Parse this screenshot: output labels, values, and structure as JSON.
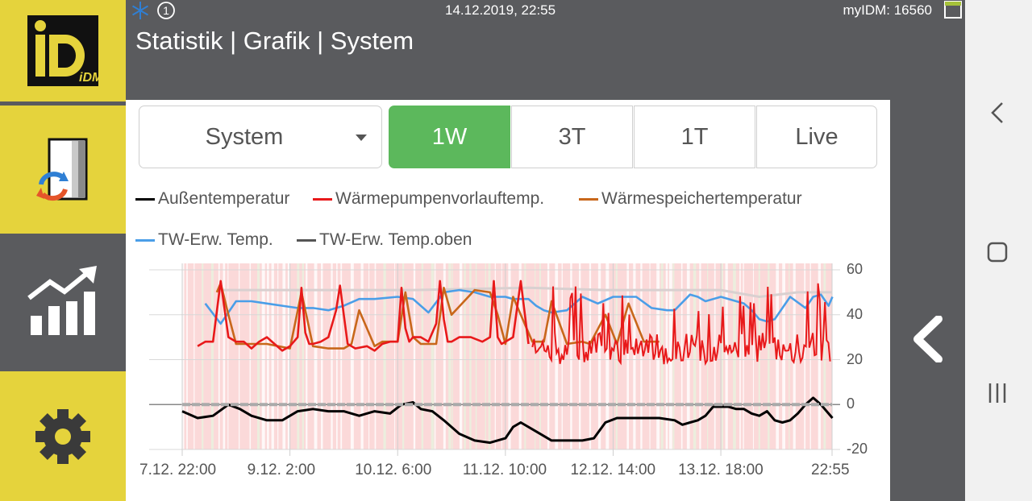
{
  "header": {
    "datetime": "14.12.2019, 22:55",
    "device_label": "myIDM: 16560",
    "title": "Statistik | Grafik | System",
    "status_icons": [
      "snowflake-icon",
      "circle-number-icon",
      "window-icon"
    ],
    "status_number": "1"
  },
  "sidebar": {
    "items": [
      {
        "name": "logo",
        "icon": "idm-logo",
        "logo_text": "iDM"
      },
      {
        "name": "system",
        "icon": "heatpump-icon"
      },
      {
        "name": "statistics",
        "icon": "chart-up-icon"
      },
      {
        "name": "settings",
        "icon": "gear-icon"
      }
    ]
  },
  "controls": {
    "selector": {
      "value": "System"
    },
    "ranges": [
      "1W",
      "3T",
      "1T",
      "Live"
    ],
    "active_range": "1W"
  },
  "colors": {
    "accent_yellow": "#e5d33c",
    "panel_gray": "#5a5b5e",
    "active_green": "#5cb85c"
  },
  "chart_data": {
    "type": "line",
    "legend": [
      {
        "name": "Außentemperatur",
        "color": "#000000"
      },
      {
        "name": "Wärmepumpenvorlauftemp.",
        "color": "#e8191a"
      },
      {
        "name": "Wärmespeichertemperatur",
        "color": "#c8671a"
      },
      {
        "name": "TW-Erw. Temp.",
        "color": "#4a9ee8"
      },
      {
        "name": "TW-Erw. Temp.oben",
        "color": "#555555"
      }
    ],
    "x_range": [
      "7.12. 22:00",
      "14.12. 22:55"
    ],
    "x_ticks": [
      "7.12. 22:00",
      "9.12. 2:00",
      "10.12. 6:00",
      "11.12. 10:00",
      "12.12. 14:00",
      "13.12. 18:00",
      "22:55"
    ],
    "x_tick_hours": [
      0,
      28,
      56,
      84,
      112,
      140,
      168.9
    ],
    "y_range": [
      -20,
      60
    ],
    "y_ticks": [
      "60",
      "40",
      "20",
      "0",
      "-20"
    ],
    "y_tick_values": [
      60,
      40,
      20,
      0,
      -20
    ],
    "grid": true,
    "series": [
      {
        "name": "Außentemperatur",
        "x": [
          0,
          4,
          8,
          12,
          15,
          18,
          22,
          26,
          30,
          34,
          38,
          42,
          46,
          50,
          54,
          57,
          60,
          62,
          65,
          68,
          72,
          76,
          80,
          84,
          86,
          88,
          92,
          96,
          100,
          104,
          107,
          110,
          113,
          116,
          120,
          124,
          128,
          130,
          132,
          134,
          136,
          138,
          140,
          142,
          144,
          146,
          148,
          150,
          152,
          154,
          156,
          158,
          160,
          162,
          164,
          166,
          168,
          169
        ],
        "y": [
          -3,
          -6,
          -5,
          0,
          -2,
          -5,
          -7,
          -7,
          -3,
          -2,
          -3,
          -3,
          -5,
          -3,
          -4,
          0,
          1,
          -2,
          -3,
          -7,
          -13,
          -16,
          -17,
          -15,
          -10,
          -8,
          -12,
          -16,
          -16,
          -16,
          -15,
          -8,
          -6,
          -6,
          -6,
          -6,
          -7,
          -9,
          -8,
          -7,
          -5,
          -1,
          -1,
          -1,
          -2,
          -2,
          -4,
          -5,
          -3,
          -7,
          -8,
          -7,
          -4,
          0,
          3,
          0,
          -4,
          -6
        ]
      },
      {
        "name": "Wärmepumpenvorlauftemp.",
        "x": [
          4,
          6,
          8,
          10,
          12,
          14,
          16,
          18,
          20,
          22,
          24,
          26,
          28,
          30,
          31,
          32,
          33,
          34,
          36,
          38,
          40,
          41,
          42,
          43,
          45,
          48,
          50,
          52,
          54,
          56,
          57,
          58,
          59,
          60,
          62,
          64,
          66,
          67,
          68,
          69,
          70,
          72,
          75,
          78,
          80,
          81,
          82,
          83,
          84,
          86,
          88,
          90
        ],
        "y": [
          26,
          28,
          28,
          55,
          30,
          28,
          28,
          25,
          28,
          30,
          27,
          24,
          26,
          30,
          52,
          32,
          27,
          27,
          28,
          30,
          42,
          53,
          40,
          27,
          25,
          26,
          24,
          27,
          28,
          28,
          52,
          34,
          28,
          30,
          30,
          28,
          36,
          55,
          38,
          28,
          28,
          30,
          30,
          28,
          30,
          55,
          30,
          27,
          28,
          30,
          55,
          27
        ]
      },
      {
        "name": "Wärmespeichertemperatur",
        "x": [
          9,
          10,
          12,
          14,
          18,
          22,
          28,
          31,
          34,
          38,
          42,
          44,
          46,
          50,
          52,
          56,
          58,
          60,
          62,
          66,
          68,
          70,
          76,
          80,
          82,
          84,
          86,
          88,
          91,
          94,
          96,
          100,
          104,
          106,
          110,
          113,
          116,
          120,
          124
        ],
        "y": [
          50,
          54,
          40,
          27,
          27,
          27,
          25,
          50,
          26,
          25,
          25,
          27,
          42,
          26,
          28,
          28,
          50,
          30,
          27,
          27,
          52,
          40,
          51,
          50,
          40,
          27,
          48,
          40,
          28,
          28,
          46,
          27,
          28,
          27,
          40,
          27,
          45,
          28,
          28
        ]
      },
      {
        "name": "TW-Erw. Temp.",
        "x": [
          6,
          10,
          14,
          18,
          22,
          26,
          30,
          34,
          38,
          42,
          46,
          50,
          56,
          60,
          64,
          68,
          72,
          76,
          80,
          84,
          86,
          90,
          92,
          94,
          96,
          100,
          104,
          108,
          112,
          118,
          122,
          126,
          128,
          132,
          134,
          136,
          140,
          144,
          146,
          148,
          150,
          152,
          154,
          158,
          162,
          164,
          166,
          168,
          169
        ],
        "y": [
          45,
          36,
          46,
          46,
          45,
          44,
          43,
          43,
          42,
          44,
          47,
          47,
          48,
          47,
          41,
          50,
          51,
          50,
          48,
          48,
          47,
          47,
          44,
          42,
          41,
          42,
          48,
          45,
          48,
          48,
          43,
          42,
          42,
          49,
          48,
          46,
          48,
          46,
          45,
          42,
          38,
          37,
          38,
          48,
          43,
          48,
          49,
          44,
          48
        ]
      },
      {
        "name": "TW-Erw. Temp.oben",
        "x": [
          9,
          20,
          40,
          60,
          90,
          110,
          120,
          140,
          150,
          160,
          169
        ],
        "y": [
          51,
          51,
          51,
          51,
          52,
          51,
          51,
          51,
          48,
          50,
          50
        ]
      }
    ]
  }
}
